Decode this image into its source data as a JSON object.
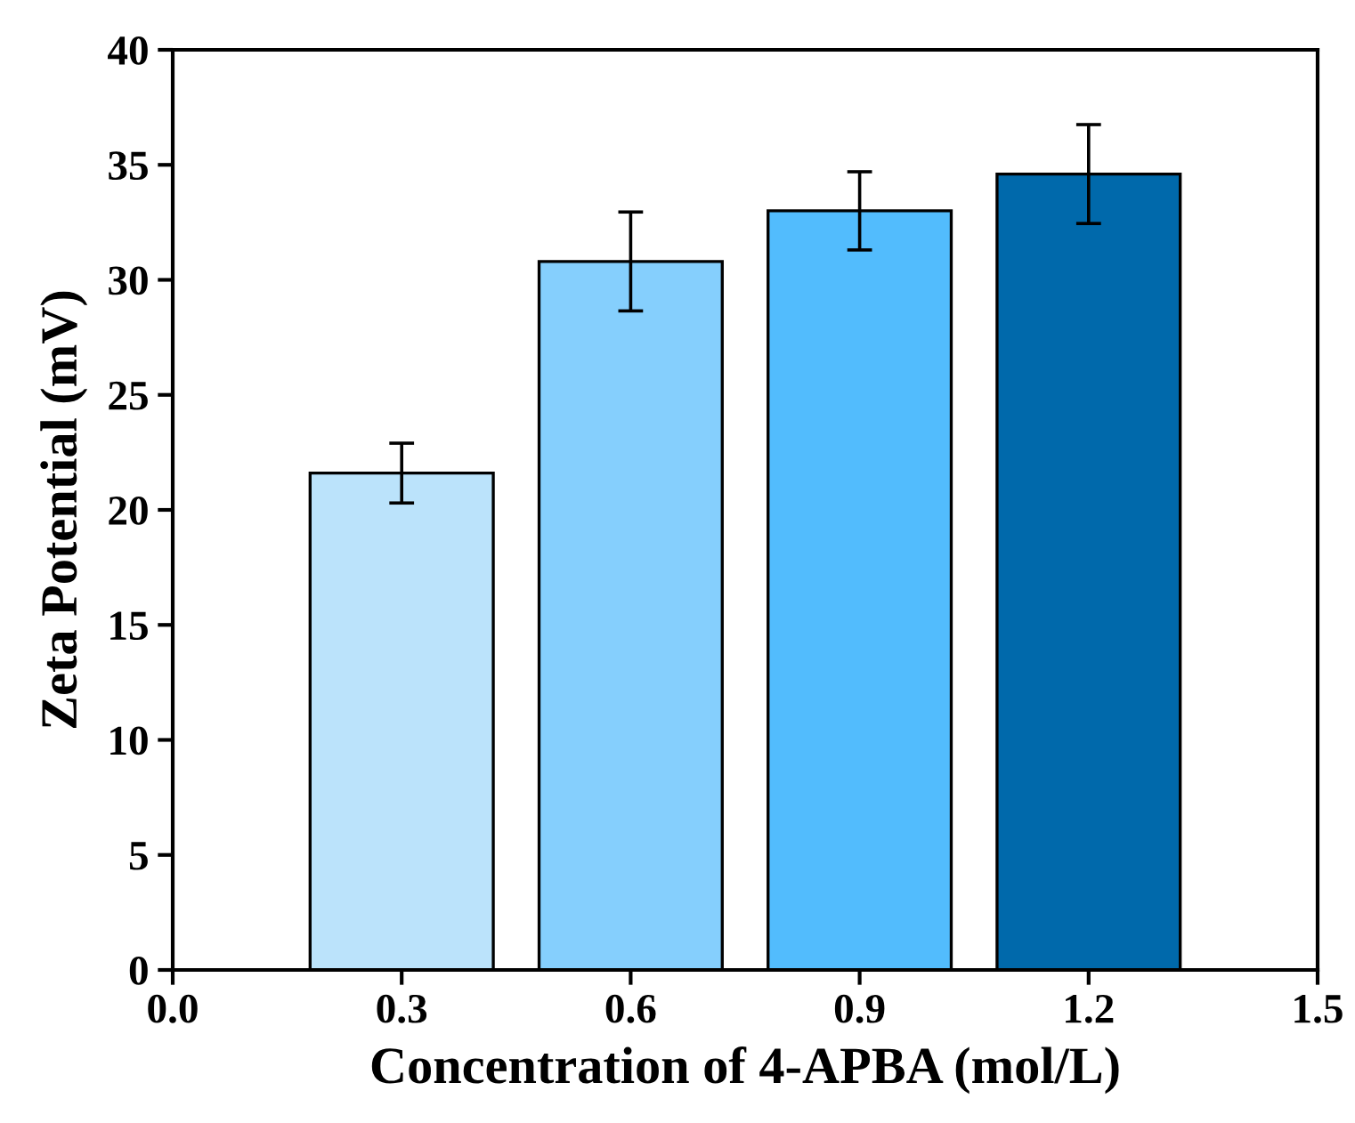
{
  "chart_data": {
    "type": "bar",
    "xlabel": "Concentration of 4-APBA (mol/L)",
    "ylabel": "Zeta Potential (mV)",
    "x": [
      0.3,
      0.6,
      0.9,
      1.2
    ],
    "values": [
      21.6,
      30.8,
      33.0,
      34.6
    ],
    "errors": [
      1.3,
      2.15,
      1.7,
      2.15
    ],
    "colors": [
      "#bbe3fb",
      "#85cffd",
      "#52bcfd",
      "#0069ab"
    ],
    "xlim": [
      0.0,
      1.5
    ],
    "xticks": [
      {
        "value": 0.0,
        "label": "0.0"
      },
      {
        "value": 0.3,
        "label": "0.3"
      },
      {
        "value": 0.6,
        "label": "0.6"
      },
      {
        "value": 0.9,
        "label": "0.9"
      },
      {
        "value": 1.2,
        "label": "1.2"
      },
      {
        "value": 1.5,
        "label": "1.5"
      }
    ],
    "ylim": [
      0,
      40
    ],
    "yticks": [
      0,
      5,
      10,
      15,
      20,
      25,
      30,
      35,
      40
    ],
    "grid": false,
    "legend": false
  }
}
